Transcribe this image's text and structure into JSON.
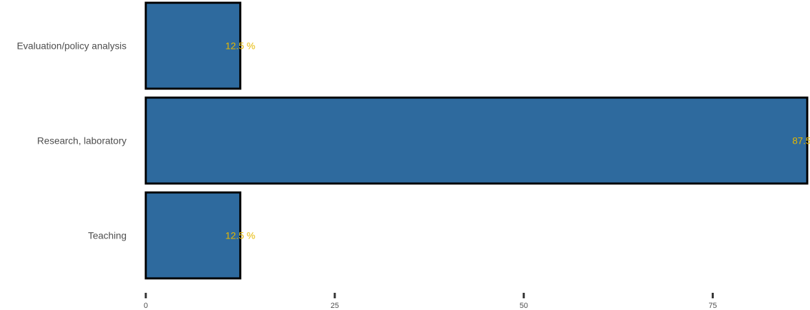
{
  "chart_data": {
    "type": "bar",
    "orientation": "horizontal",
    "categories": [
      "Evaluation/policy analysis",
      "Research, laboratory",
      "Teaching"
    ],
    "values": [
      12.5,
      87.5,
      12.5
    ],
    "data_labels": [
      "12.5 %",
      "87.5 %",
      "12.5 %"
    ],
    "xlim": [
      0,
      87.5
    ],
    "x_ticks": [
      0,
      25,
      50,
      75
    ],
    "x_tick_labels": [
      "0",
      "25",
      "50",
      "75"
    ],
    "title": "",
    "xlabel": "",
    "ylabel": "",
    "grid": false,
    "legend": "none",
    "colors": {
      "bar_fill": "#2e6a9e",
      "bar_border": "#000000",
      "data_label": "#e6b800",
      "text": "#4d4d4d",
      "tick": "#333333"
    }
  }
}
